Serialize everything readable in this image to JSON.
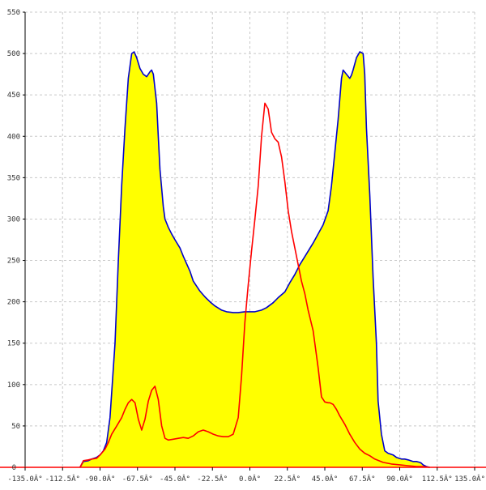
{
  "chart_data": {
    "type": "area",
    "xlim": [
      -135,
      135
    ],
    "ylim": [
      0,
      550
    ],
    "grid": true,
    "x_ticks": [
      {
        "value": -135,
        "label": "-135.0Â°"
      },
      {
        "value": -112.5,
        "label": "-112.5Â°"
      },
      {
        "value": -90,
        "label": "-90.0Â°"
      },
      {
        "value": -67.5,
        "label": "-67.5Â°"
      },
      {
        "value": -45,
        "label": "-45.0Â°"
      },
      {
        "value": -22.5,
        "label": "-22.5Â°"
      },
      {
        "value": 0,
        "label": "0.0Â°"
      },
      {
        "value": 22.5,
        "label": "22.5Â°"
      },
      {
        "value": 45,
        "label": "45.0Â°"
      },
      {
        "value": 67.5,
        "label": "67.5Â°"
      },
      {
        "value": 90,
        "label": "90.0Â°"
      },
      {
        "value": 112.5,
        "label": "112.5Â°"
      },
      {
        "value": 135,
        "label": "135.0Â°"
      }
    ],
    "y_ticks": [
      {
        "value": 50,
        "label": "50"
      },
      {
        "value": 100,
        "label": "100"
      },
      {
        "value": 150,
        "label": "150"
      },
      {
        "value": 200,
        "label": "200"
      },
      {
        "value": 250,
        "label": "250"
      },
      {
        "value": 300,
        "label": "300"
      },
      {
        "value": 350,
        "label": "350"
      },
      {
        "value": 400,
        "label": "400"
      },
      {
        "value": 450,
        "label": "450"
      },
      {
        "value": 500,
        "label": "500"
      },
      {
        "value": 550,
        "label": "550"
      }
    ],
    "y_zero_label": "0",
    "series": [
      {
        "color": "#0000cc",
        "fill": "#ffff00",
        "x": [
          -102,
          -100,
          -97,
          -95,
          -92,
          -90,
          -88,
          -86,
          -84,
          -81,
          -79,
          -77,
          -75,
          -73,
          -71,
          -69.5,
          -68,
          -66,
          -64,
          -62,
          -60,
          -59,
          -58,
          -56,
          -55,
          -54,
          -52,
          -51,
          -49,
          -47,
          -45,
          -42,
          -40,
          -36,
          -34,
          -30,
          -27,
          -24,
          -21,
          -17,
          -14,
          -10,
          -7,
          -3,
          0,
          3,
          7,
          10,
          14,
          17,
          21,
          24,
          27,
          30,
          34,
          38,
          41,
          44,
          47,
          49,
          51,
          53,
          55,
          56,
          58,
          60,
          61,
          62,
          64,
          66,
          68,
          69,
          70,
          72,
          74,
          76,
          77,
          79,
          81,
          83,
          86,
          88,
          91,
          93,
          95,
          98,
          100,
          102,
          103,
          104,
          106,
          108
        ],
        "y": [
          0,
          7,
          8,
          10,
          12,
          15,
          20,
          30,
          60,
          150,
          250,
          340,
          410,
          470,
          500,
          502,
          495,
          482,
          475,
          472,
          478,
          480,
          475,
          440,
          400,
          360,
          315,
          300,
          290,
          282,
          275,
          265,
          255,
          237,
          225,
          213,
          206,
          200,
          195,
          190,
          188,
          187,
          187,
          188,
          188,
          188,
          190,
          193,
          199,
          205,
          212,
          223,
          233,
          245,
          258,
          271,
          282,
          293,
          310,
          340,
          380,
          420,
          470,
          480,
          475,
          470,
          474,
          480,
          495,
          502,
          500,
          475,
          410,
          330,
          230,
          150,
          80,
          40,
          20,
          17,
          15,
          12,
          10,
          10,
          9,
          7,
          7,
          6,
          5,
          3,
          1,
          0
        ]
      },
      {
        "color": "#ff0000",
        "fill": "none",
        "x": [
          -102,
          -100,
          -97,
          -95,
          -92,
          -90,
          -87,
          -85,
          -83,
          -80,
          -77,
          -75,
          -73,
          -71,
          -69,
          -67,
          -65,
          -63,
          -61,
          -59,
          -57,
          -55,
          -53,
          -51,
          -49,
          -46,
          -43,
          -40,
          -37,
          -34,
          -31,
          -28,
          -25,
          -22,
          -19,
          -16,
          -13,
          -10,
          -7,
          -5,
          -3,
          -1,
          1,
          3,
          5,
          7,
          9,
          11,
          13,
          15,
          17,
          19,
          21,
          23,
          25,
          27,
          29,
          31,
          33,
          35,
          38,
          41,
          43,
          45,
          47,
          48,
          50,
          52,
          54,
          57,
          60,
          63,
          66,
          69,
          72,
          75,
          80,
          85,
          90,
          95,
          100,
          104,
          108
        ],
        "y": [
          0,
          8,
          9,
          10,
          11,
          15,
          22,
          30,
          40,
          50,
          60,
          70,
          78,
          82,
          78,
          58,
          45,
          58,
          80,
          93,
          98,
          82,
          50,
          35,
          33,
          34,
          35,
          36,
          35,
          38,
          43,
          45,
          43,
          40,
          38,
          37,
          37,
          40,
          60,
          110,
          175,
          220,
          262,
          300,
          340,
          400,
          440,
          433,
          405,
          397,
          393,
          375,
          345,
          310,
          285,
          265,
          245,
          225,
          210,
          190,
          165,
          120,
          85,
          79,
          78,
          78,
          76,
          70,
          62,
          52,
          40,
          30,
          22,
          17,
          14,
          10,
          6,
          4,
          3,
          2,
          1,
          1,
          0
        ]
      }
    ]
  }
}
